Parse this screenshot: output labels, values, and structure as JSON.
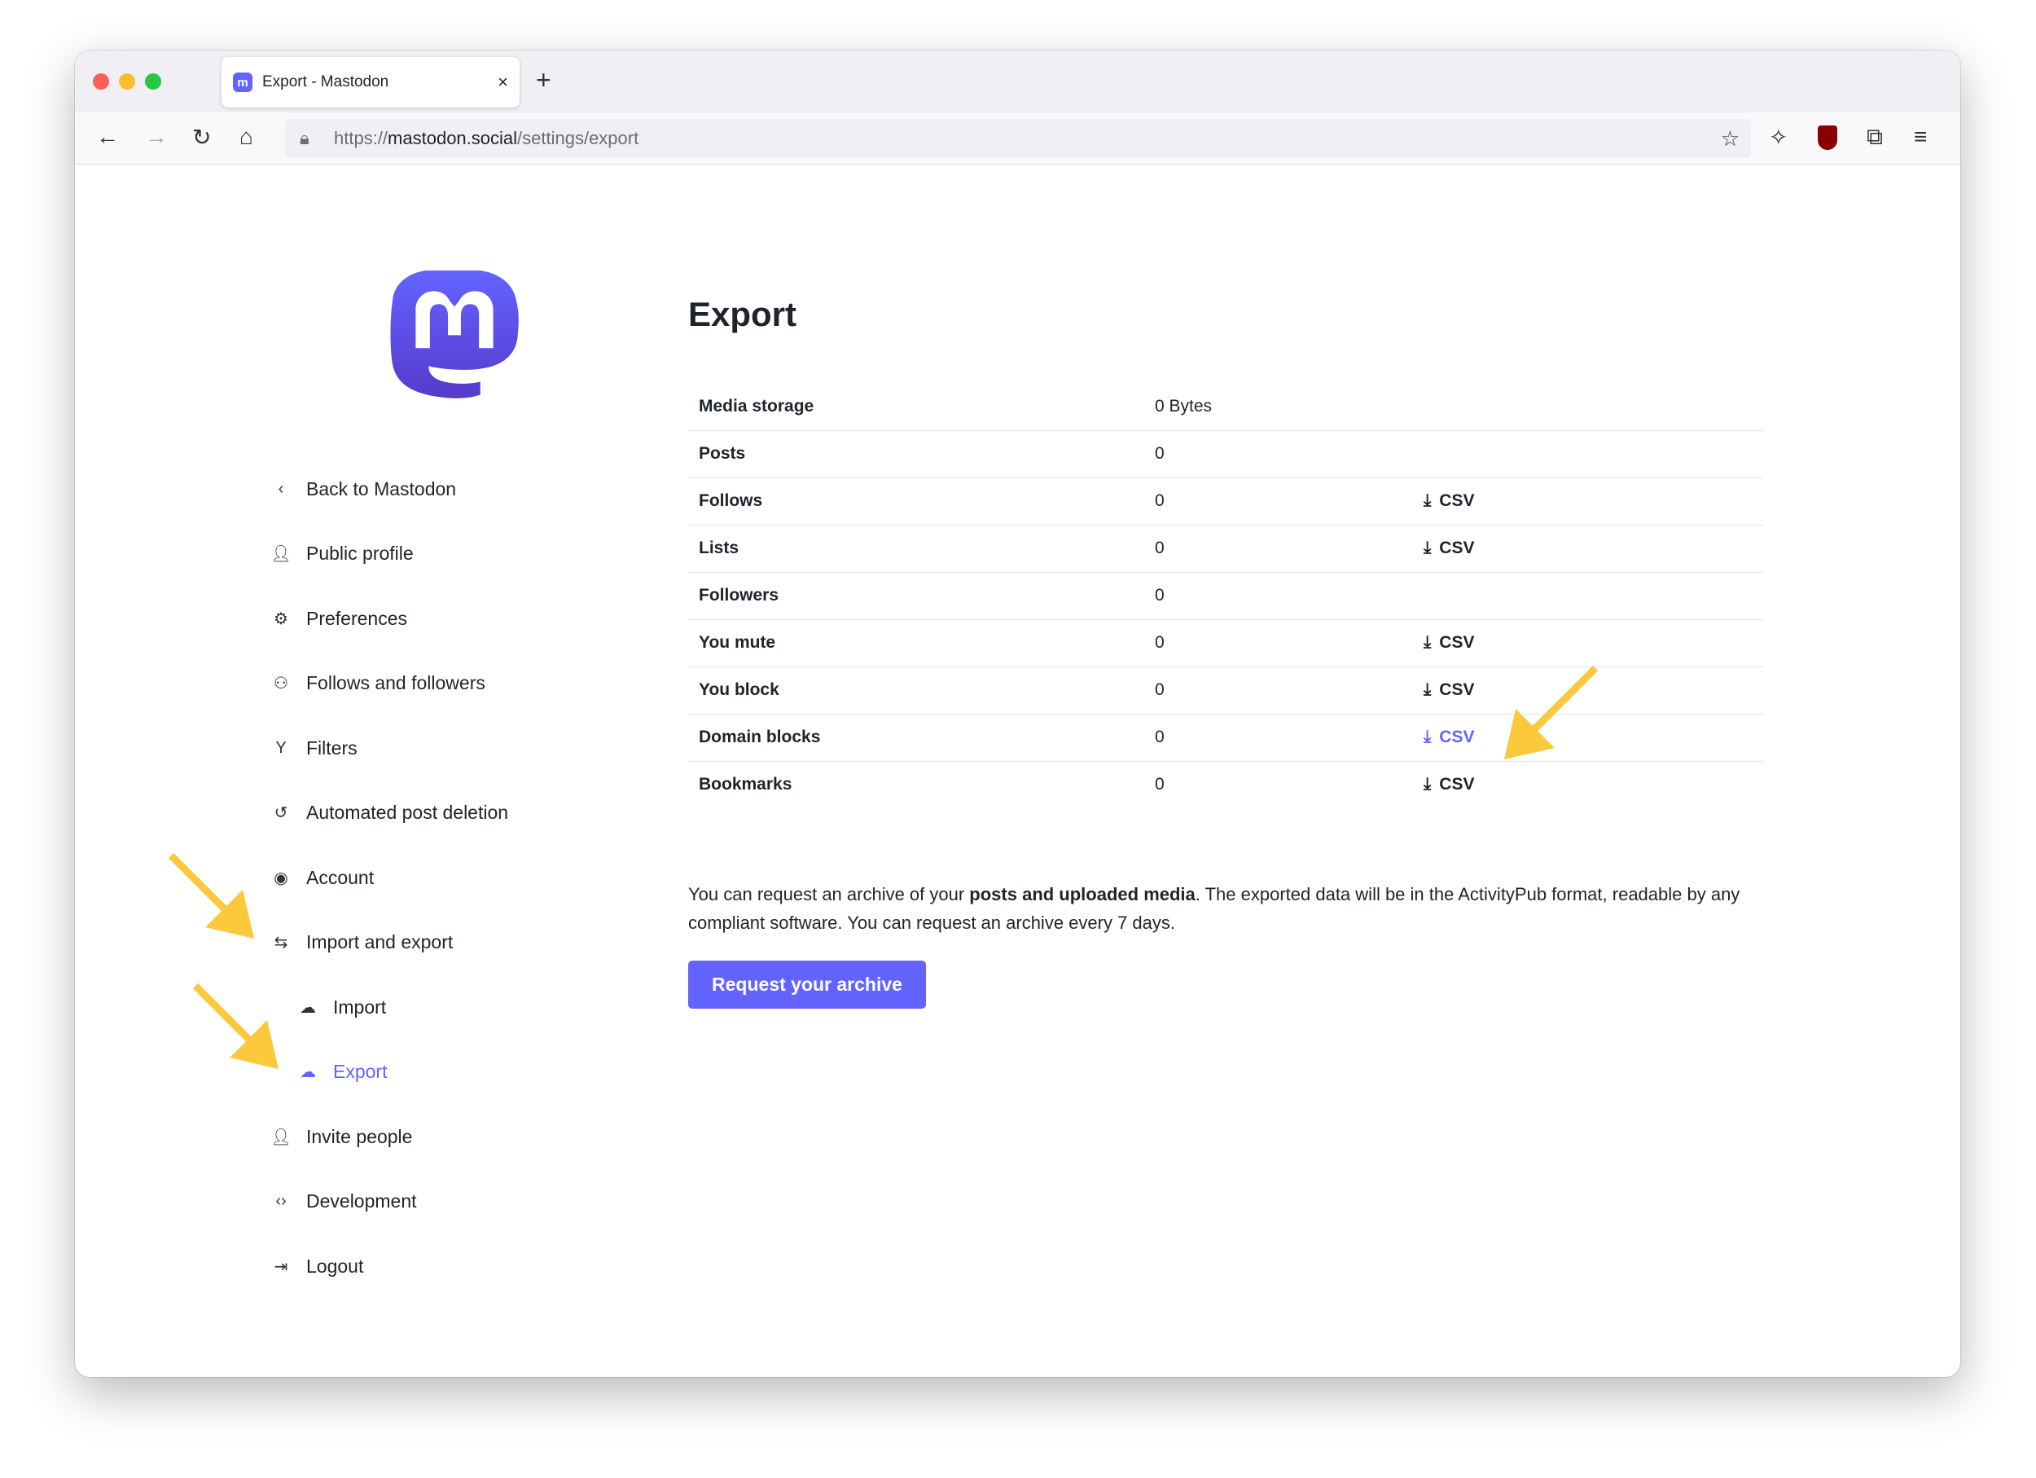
{
  "browser": {
    "tab_title": "Export - Mastodon",
    "url_prefix": "https://",
    "url_host": "mastodon.social",
    "url_path": "/settings/export",
    "tab_favicon": "mastodon-icon",
    "new_tab": "+",
    "close": "×"
  },
  "sidebar": {
    "items": [
      {
        "label": "Back to Mastodon",
        "icon": "chevron-left-icon"
      },
      {
        "label": "Public profile",
        "icon": "user-icon"
      },
      {
        "label": "Preferences",
        "icon": "gear-icon"
      },
      {
        "label": "Follows and followers",
        "icon": "users-icon"
      },
      {
        "label": "Filters",
        "icon": "filter-icon"
      },
      {
        "label": "Automated post deletion",
        "icon": "history-icon"
      },
      {
        "label": "Account",
        "icon": "user-circle-icon"
      },
      {
        "label": "Import and export",
        "icon": "import-export-icon"
      },
      {
        "label": "Import",
        "icon": "cloud-upload-icon"
      },
      {
        "label": "Export",
        "icon": "cloud-download-icon",
        "active": true
      },
      {
        "label": "Invite people",
        "icon": "user-plus-icon"
      },
      {
        "label": "Development",
        "icon": "code-icon"
      },
      {
        "label": "Logout",
        "icon": "logout-icon"
      }
    ]
  },
  "main": {
    "title": "Export",
    "rows": [
      {
        "label": "Media storage",
        "value": "0 Bytes",
        "csv": ""
      },
      {
        "label": "Posts",
        "value": "0",
        "csv": ""
      },
      {
        "label": "Follows",
        "value": "0",
        "csv": "CSV"
      },
      {
        "label": "Lists",
        "value": "0",
        "csv": "CSV"
      },
      {
        "label": "Followers",
        "value": "0",
        "csv": ""
      },
      {
        "label": "You mute",
        "value": "0",
        "csv": "CSV"
      },
      {
        "label": "You block",
        "value": "0",
        "csv": "CSV"
      },
      {
        "label": "Domain blocks",
        "value": "0",
        "csv": "CSV"
      },
      {
        "label": "Bookmarks",
        "value": "0",
        "csv": "CSV"
      }
    ],
    "info_before": "You can request an archive of your ",
    "info_bold": "posts and uploaded media",
    "info_after": ". The exported data will be in the ActivityPub format, readable by any compliant software. You can request an archive every 7 days.",
    "request_button": "Request your archive"
  },
  "colors": {
    "accent": "#6364ff",
    "annotation_arrow": "#fcc83c"
  }
}
